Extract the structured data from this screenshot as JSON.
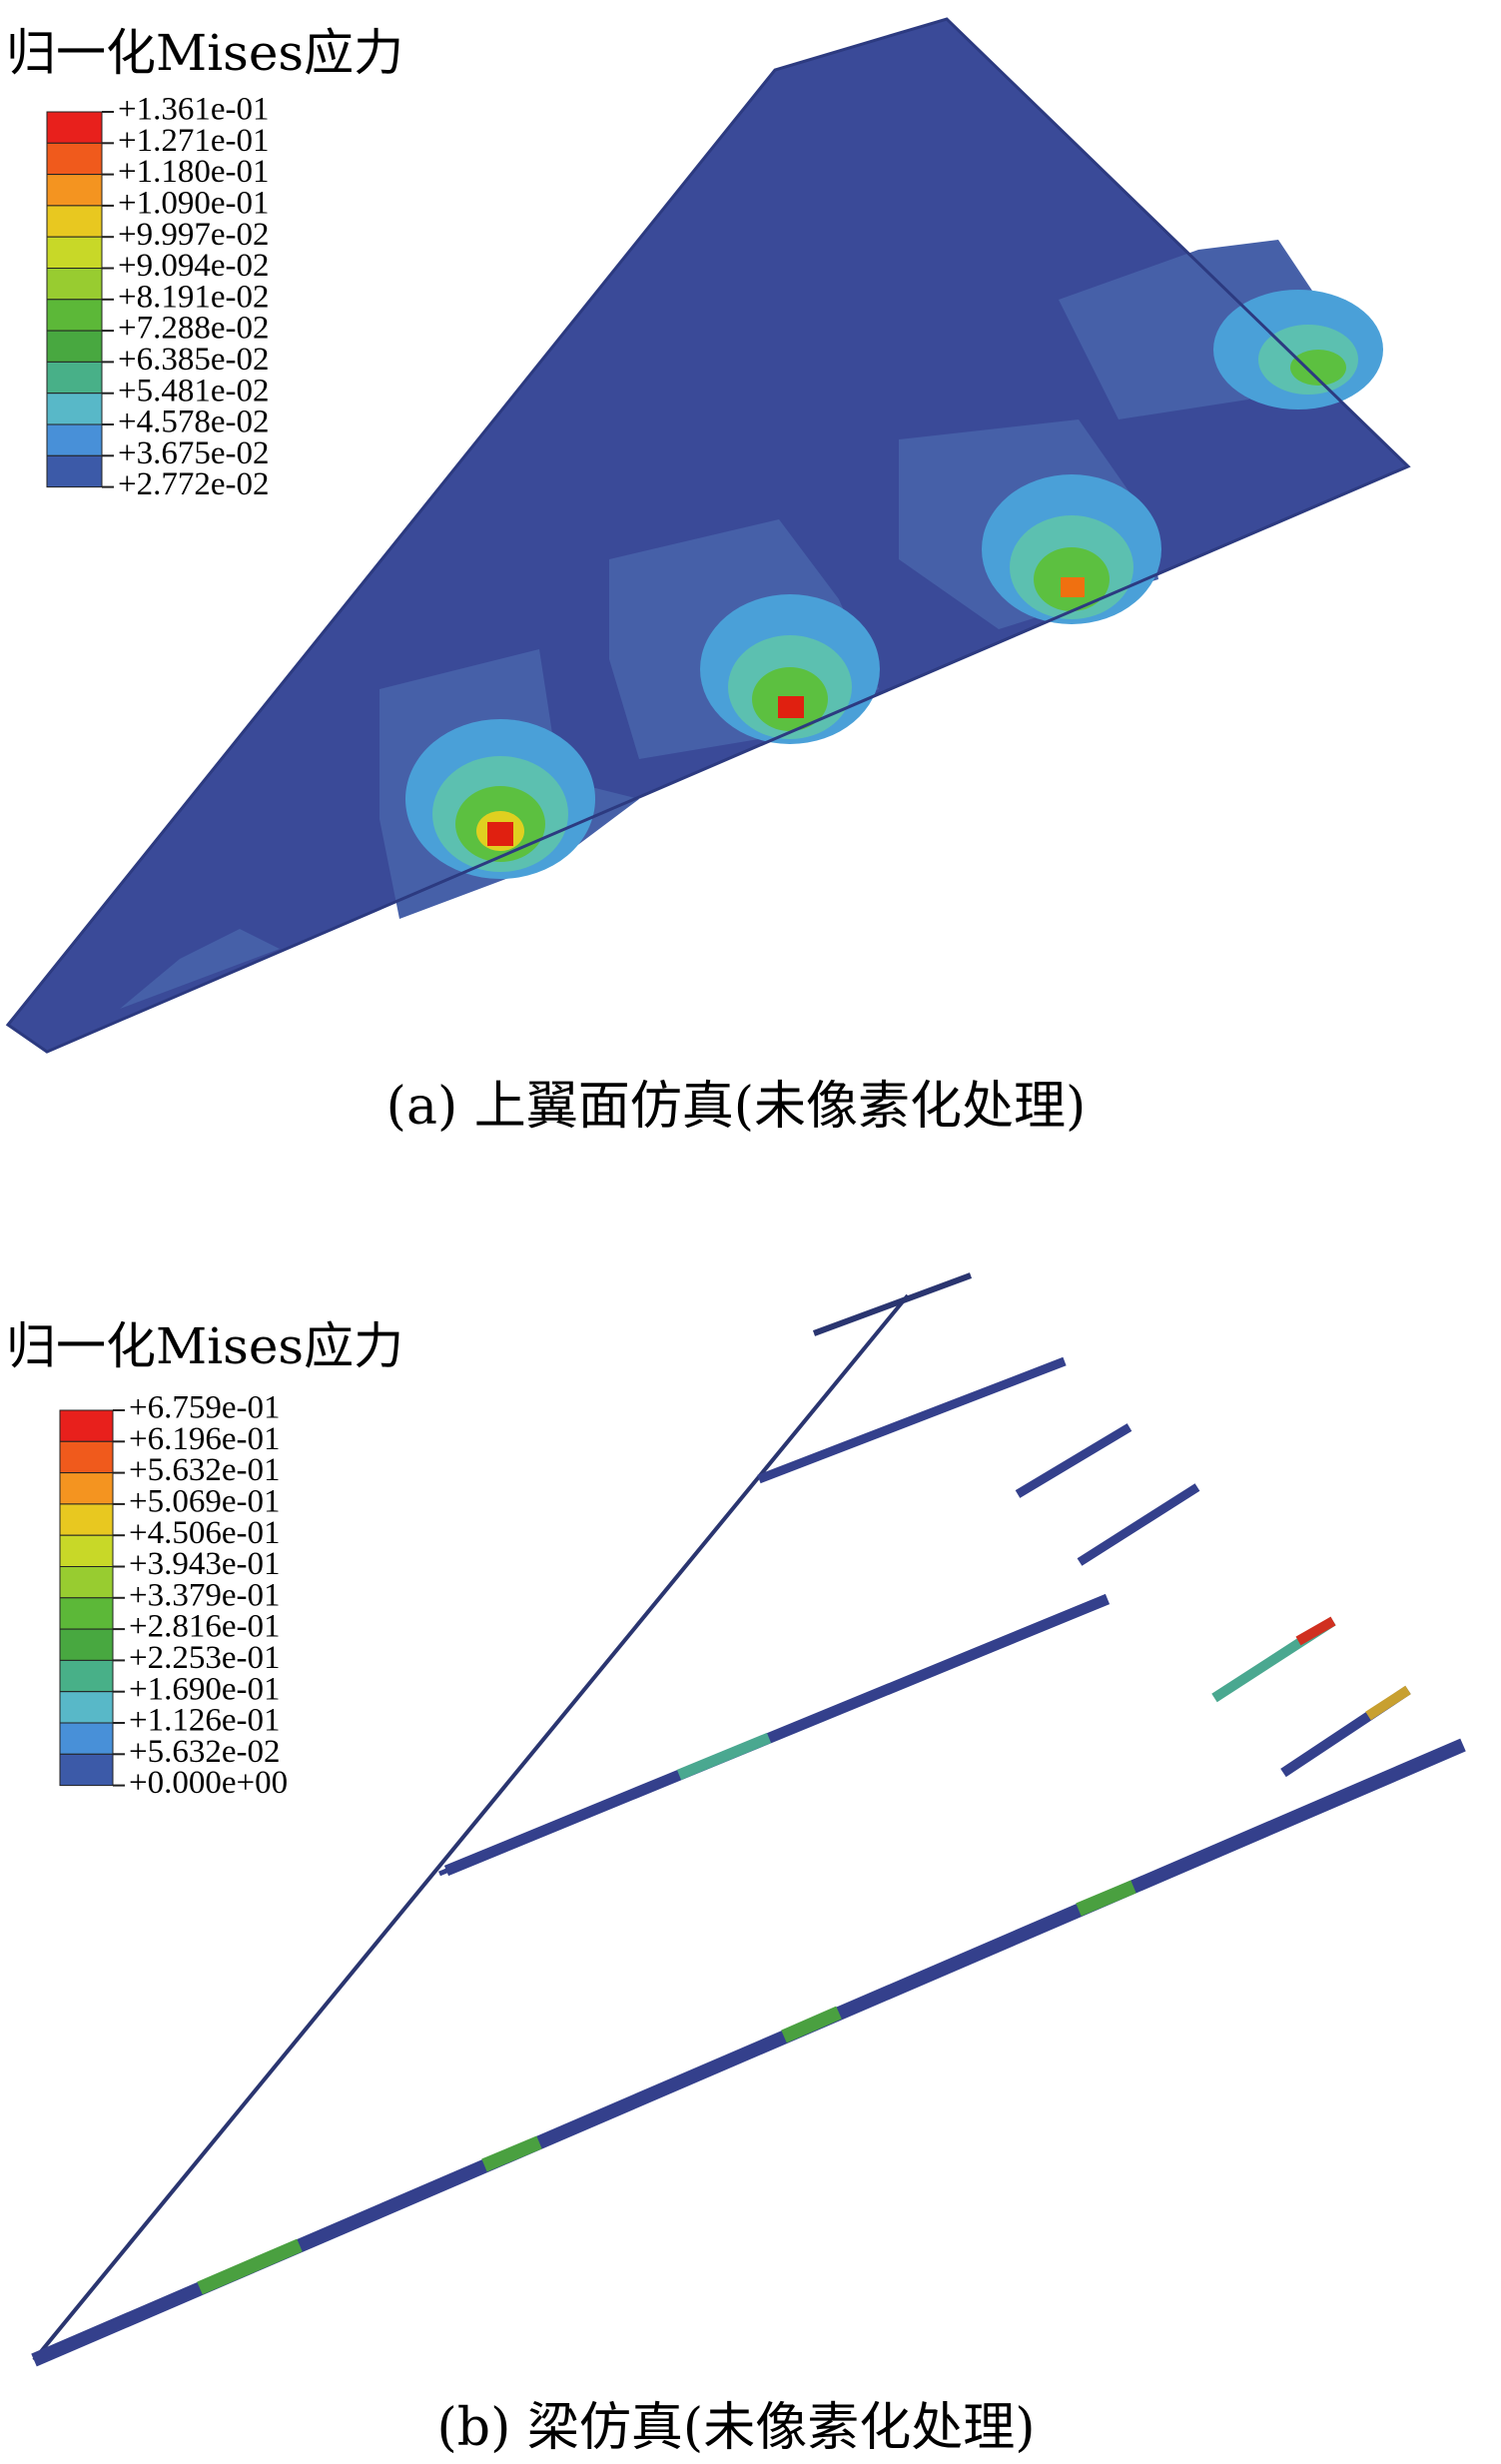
{
  "panels": [
    {
      "legend": {
        "title": "归一化Mises应力",
        "labels": [
          "+1.361e-01",
          "+1.271e-01",
          "+1.180e-01",
          "+1.090e-01",
          "+9.997e-02",
          "+9.094e-02",
          "+8.191e-02",
          "+7.288e-02",
          "+6.385e-02",
          "+5.481e-02",
          "+4.578e-02",
          "+3.675e-02",
          "+2.772e-02"
        ]
      },
      "caption": "(a) 上翼面仿真(未像素化处理)"
    },
    {
      "legend": {
        "title": "归一化Mises应力",
        "labels": [
          "+6.759e-01",
          "+6.196e-01",
          "+5.632e-01",
          "+5.069e-01",
          "+4.506e-01",
          "+3.943e-01",
          "+3.379e-01",
          "+2.816e-01",
          "+2.253e-01",
          "+1.690e-01",
          "+1.126e-01",
          "+5.632e-02",
          "+0.000e+00"
        ]
      },
      "caption": "(b) 梁仿真(未像素化处理)"
    }
  ]
}
